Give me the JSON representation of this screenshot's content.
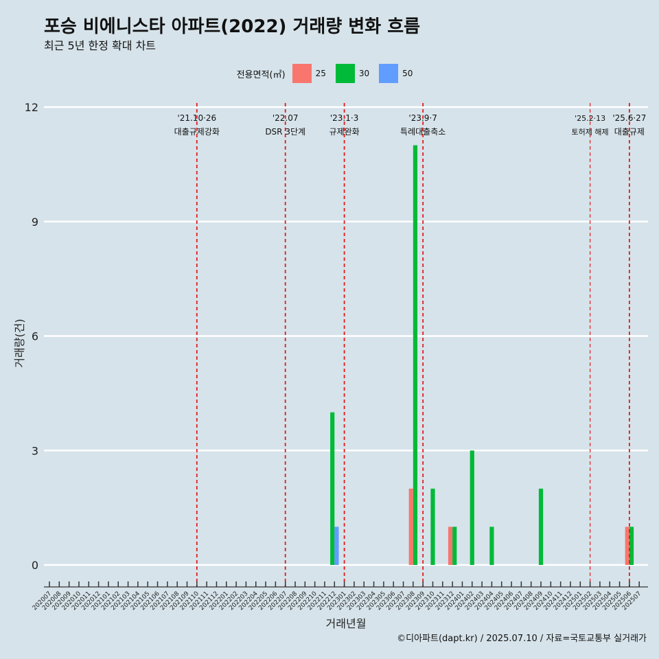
{
  "title": "포승 비에니스타 아파트(2022) 거래량 변화 흐름",
  "subtitle": "최근 5년 한정 확대 차트",
  "legend": {
    "title": "전용면적(㎡)",
    "items": [
      {
        "label": "25",
        "color": "#f8766d"
      },
      {
        "label": "30",
        "color": "#00ba38"
      },
      {
        "label": "50",
        "color": "#619cff"
      }
    ]
  },
  "caption": "©디아파트(dapt.kr) / 2025.07.10 / 자료=국토교통부 실거래가",
  "chart_data": {
    "type": "bar",
    "xlabel": "거래년월",
    "ylabel": "거래량(건)",
    "ylim": [
      0,
      12
    ],
    "yticks": [
      0,
      3,
      6,
      9,
      12
    ],
    "grid": true,
    "legend_position": "top",
    "categories": [
      "202007",
      "202008",
      "202009",
      "202010",
      "202011",
      "202012",
      "202101",
      "202102",
      "202103",
      "202104",
      "202105",
      "202106",
      "202107",
      "202108",
      "202109",
      "202110",
      "202111",
      "202112",
      "202201",
      "202202",
      "202203",
      "202204",
      "202205",
      "202206",
      "202207",
      "202208",
      "202209",
      "202210",
      "202211",
      "202212",
      "202301",
      "202302",
      "202303",
      "202304",
      "202305",
      "202306",
      "202307",
      "202308",
      "202309",
      "202310",
      "202311",
      "202312",
      "202401",
      "202402",
      "202403",
      "202404",
      "202405",
      "202406",
      "202407",
      "202408",
      "202409",
      "202410",
      "202411",
      "202412",
      "202501",
      "202502",
      "202503",
      "202504",
      "202505",
      "202506",
      "202507"
    ],
    "series": [
      {
        "name": "25",
        "color": "#f8766d",
        "points": [
          [
            "202308",
            2
          ],
          [
            "202312",
            1
          ],
          [
            "202506",
            1
          ]
        ]
      },
      {
        "name": "30",
        "color": "#00ba38",
        "points": [
          [
            "202212",
            4
          ],
          [
            "202308",
            11
          ],
          [
            "202310",
            2
          ],
          [
            "202312",
            1
          ],
          [
            "202402",
            3
          ],
          [
            "202404",
            1
          ],
          [
            "202409",
            2
          ],
          [
            "202506",
            1
          ]
        ]
      },
      {
        "name": "50",
        "color": "#619cff",
        "points": [
          [
            "202212",
            1
          ]
        ]
      }
    ],
    "annotations": [
      {
        "x": "202110",
        "date": "'21.10·26",
        "label": "대출규제강화"
      },
      {
        "x": "202207",
        "date": "'22.07",
        "label": "DSR 3단계"
      },
      {
        "x": "202301",
        "date": "'23.1·3",
        "label": "규제완화"
      },
      {
        "x": "202309",
        "date": "'23.9·7",
        "label": "특례대출축소"
      },
      {
        "x": "202502",
        "date": "'25.2·13",
        "label": "토허제 해제"
      },
      {
        "x": "202506",
        "date": "'25.6·27",
        "label": "대출규제"
      }
    ]
  }
}
